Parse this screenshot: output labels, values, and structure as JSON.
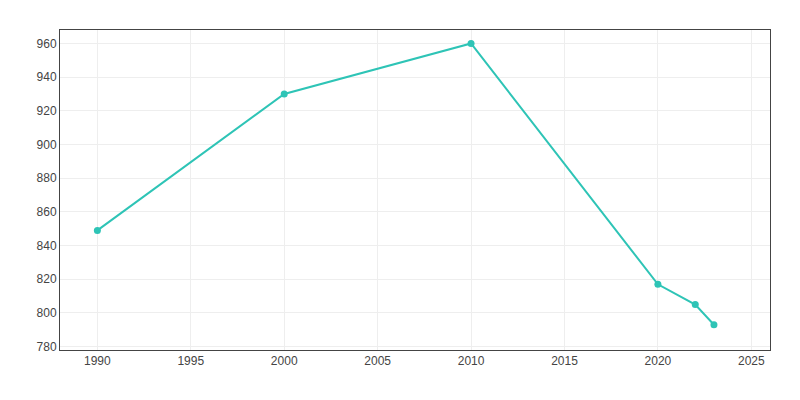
{
  "chart_data": {
    "type": "line",
    "x": [
      1990,
      2000,
      2010,
      2020,
      2022,
      2023
    ],
    "values": [
      849,
      930,
      960,
      817,
      805,
      793
    ],
    "color": "#2ec4b6",
    "marker": "circle",
    "xlim": [
      1988,
      2026
    ],
    "xticks": [
      1990,
      1995,
      2000,
      2005,
      2010,
      2015,
      2020,
      2025
    ],
    "ylim": [
      778,
      968
    ],
    "yticks": [
      780,
      800,
      820,
      840,
      860,
      880,
      900,
      920,
      940,
      960
    ],
    "grid": true
  }
}
